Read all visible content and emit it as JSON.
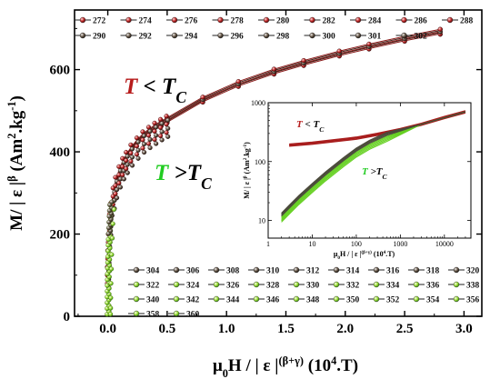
{
  "chart_data": [
    {
      "type": "scatter",
      "x_axis": {
        "label_parts": [
          "μ",
          "0",
          "H / | ε |",
          "(β+γ)",
          " (10",
          "4",
          ".T)"
        ],
        "range": [
          -0.28,
          3.15
        ],
        "ticks": [
          0.0,
          0.5,
          1.0,
          1.5,
          2.0,
          2.5,
          3.0
        ],
        "tick_labels": [
          "0.0",
          "0.5",
          "1.0",
          "1.5",
          "2.0",
          "2.5",
          "3.0"
        ]
      },
      "y_axis": {
        "label_parts": [
          "M/ | ε |",
          "β",
          " (Am",
          "2",
          ".kg",
          "-1",
          ")"
        ],
        "range": [
          0,
          745
        ],
        "ticks": [
          0,
          200,
          400,
          600
        ],
        "tick_labels": [
          "0",
          "200",
          "400",
          "600"
        ]
      },
      "annotations": {
        "below_tc": {
          "main": "T",
          "op": " < ",
          "sym": "T",
          "sub": "C",
          "color": "#b71c1c"
        },
        "above_tc": {
          "main": "T",
          "op": " >",
          "sym": "T",
          "sub": "C",
          "color": "#22cc22"
        }
      },
      "legend_upper": {
        "placement": "top",
        "rows": [
          [
            "272",
            "274",
            "276",
            "278",
            "280",
            "282",
            "284",
            "286",
            "288"
          ],
          [
            "290",
            "292",
            "294",
            "296",
            "298",
            "300",
            "301",
            "302"
          ]
        ]
      },
      "legend_lower": {
        "placement": "bottom-right",
        "rows": [
          [
            "304",
            "306",
            "308",
            "310",
            "312",
            "314",
            "316",
            "318",
            "320"
          ],
          [
            "322",
            "324",
            "326",
            "328",
            "330",
            "332",
            "334",
            "336",
            "338"
          ],
          [
            "340",
            "342",
            "344",
            "346",
            "348",
            "350",
            "352",
            "354",
            "356"
          ],
          [
            "358",
            "360"
          ]
        ]
      },
      "series_below_tc": {
        "name": "T < TC",
        "x": [
          0.002,
          0.005,
          0.01,
          0.02,
          0.03,
          0.05,
          0.07,
          0.1,
          0.13,
          0.16,
          0.2,
          0.25,
          0.3,
          0.35,
          0.4,
          0.45,
          0.5,
          0.8,
          1.1,
          1.4,
          1.65,
          1.95,
          2.2,
          2.5,
          2.8
        ],
        "y": [
          110,
          150,
          190,
          238,
          265,
          302,
          328,
          354,
          374,
          389,
          407,
          424,
          439,
          450,
          460,
          469,
          477,
          527,
          565,
          595,
          616,
          639,
          656,
          675,
          692
        ]
      },
      "series_above_tc": {
        "name": "T > TC",
        "x": [
          0.0,
          0.001,
          0.002,
          0.004,
          0.007,
          0.01,
          0.015,
          0.02,
          0.03
        ],
        "y": [
          5,
          20,
          45,
          80,
          115,
          150,
          190,
          225,
          260
        ]
      }
    },
    {
      "type": "line",
      "scale": "log-log",
      "x_axis": {
        "label_parts": [
          "μ",
          "0",
          "H / | ε |",
          "(β+γ)",
          " (10",
          "4",
          ".T)"
        ],
        "range": [
          1,
          40000
        ],
        "ticks": [
          1,
          10,
          100,
          1000,
          10000
        ],
        "tick_labels": [
          "1",
          "10",
          "100",
          "1000",
          "10000"
        ]
      },
      "y_axis": {
        "label_parts": [
          "M/ | ε |",
          "β",
          " (Am",
          "2",
          ".kg",
          "-1",
          ")"
        ],
        "range": [
          5,
          1000
        ],
        "ticks": [
          10,
          100,
          1000
        ],
        "tick_labels": [
          "10",
          "100",
          "1000"
        ]
      },
      "annotations": {
        "below_tc": {
          "main": "T",
          "op": " < ",
          "sym": "T",
          "sub": "C",
          "color": "#b71c1c"
        },
        "above_tc": {
          "main": "T",
          "op": " >",
          "sym": "T",
          "sub": "C",
          "color": "#22cc22"
        }
      },
      "series_below_tc": {
        "name": "T < TC",
        "x": [
          3,
          10,
          30,
          100,
          300,
          1000,
          3000,
          10000,
          30000
        ],
        "y": [
          190,
          205,
          225,
          250,
          290,
          350,
          430,
          560,
          700
        ]
      },
      "series_above_tc": {
        "name": "T > TC",
        "x": [
          2,
          3,
          5,
          10,
          20,
          50,
          100,
          200,
          500
        ],
        "y": [
          11,
          15,
          22,
          35,
          55,
          95,
          140,
          190,
          260
        ]
      }
    }
  ]
}
